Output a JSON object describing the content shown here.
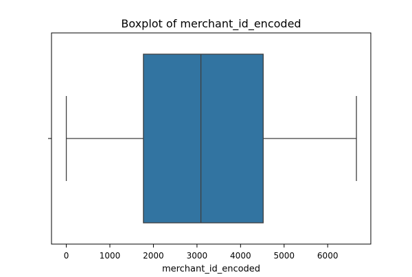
{
  "chart_data": {
    "type": "boxplot",
    "title": "Boxplot of merchant_id_encoded",
    "xlabel": "merchant_id_encoded",
    "ylabel": "",
    "orientation": "horizontal",
    "xlim": [
      -340,
      6990
    ],
    "xticks": [
      0,
      1000,
      2000,
      3000,
      4000,
      5000,
      6000
    ],
    "xtick_labels": [
      "0",
      "1000",
      "2000",
      "3000",
      "4000",
      "5000",
      "6000"
    ],
    "grid": false,
    "series": [
      {
        "whisker_low": 0,
        "q1": 1770,
        "median": 3090,
        "q3": 4520,
        "whisker_high": 6660
      }
    ],
    "colors": {
      "box_fill": "#3274a1",
      "line": "#3f3f3f",
      "axis": "#000000",
      "background": "#ffffff"
    }
  }
}
